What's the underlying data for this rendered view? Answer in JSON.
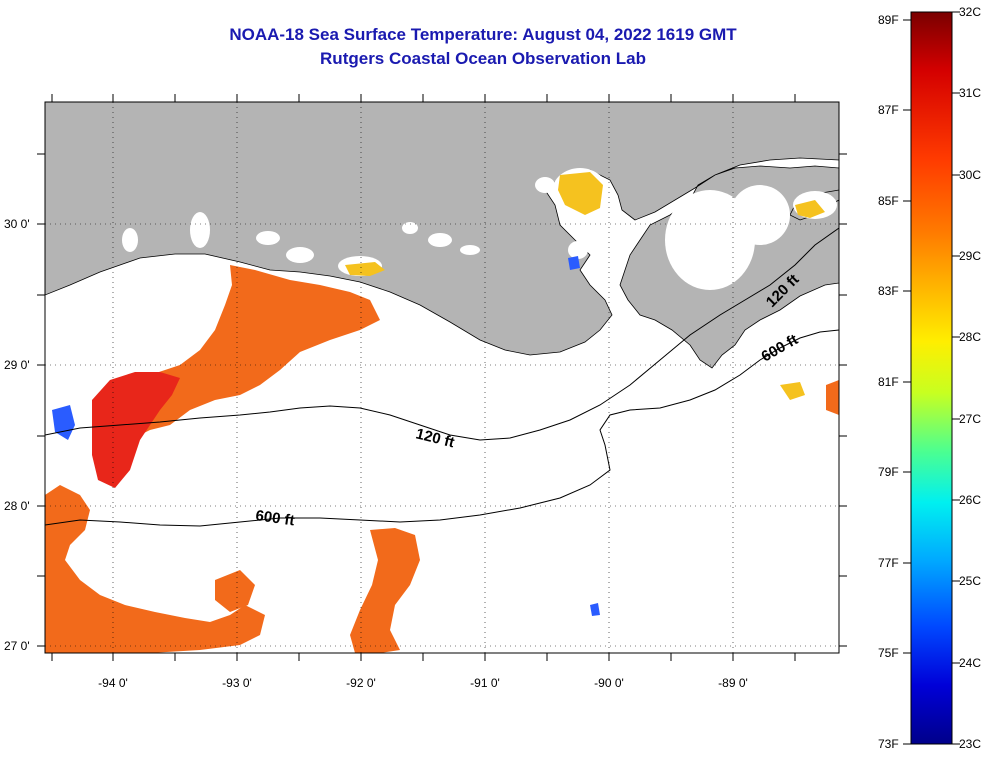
{
  "title": {
    "line1": "NOAA-18 Sea Surface Temperature:  August 04, 2022 1619 GMT",
    "line2": "Rutgers Coastal Ocean Observation Lab"
  },
  "map": {
    "lat_labels": [
      "30 0'",
      "29 0'",
      "28 0'",
      "27 0'"
    ],
    "lon_labels": [
      "-94 0'",
      "-93 0'",
      "-92 0'",
      "-91 0'",
      "-90 0'",
      "-89 0'"
    ],
    "contour_labels": {
      "c120_mid": "120 ft",
      "c600_mid": "600 ft",
      "c120_east": "120 ft",
      "c600_east": "600 ft"
    },
    "colors": {
      "land": "#b4b4b4",
      "cloud": "#ffffff",
      "sst_warm": "#f26a1b",
      "sst_hot": "#e8261a",
      "sst_mid": "#f5c21f"
    }
  },
  "colorbar": {
    "fahrenheit_labels": [
      "89F",
      "87F",
      "85F",
      "83F",
      "81F",
      "79F",
      "77F",
      "75F",
      "73F"
    ],
    "celsius_labels": [
      "32C",
      "31C",
      "30C",
      "29C",
      "28C",
      "27C",
      "26C",
      "25C",
      "24C",
      "23C"
    ],
    "range_c": [
      23,
      32
    ],
    "gradient": [
      "#7a0000",
      "#d40000",
      "#ff3a00",
      "#ff7a00",
      "#ffb800",
      "#ffee00",
      "#c8ff20",
      "#4cff90",
      "#00f0f0",
      "#00a8ff",
      "#0048ff",
      "#0000d8",
      "#00008a"
    ]
  }
}
